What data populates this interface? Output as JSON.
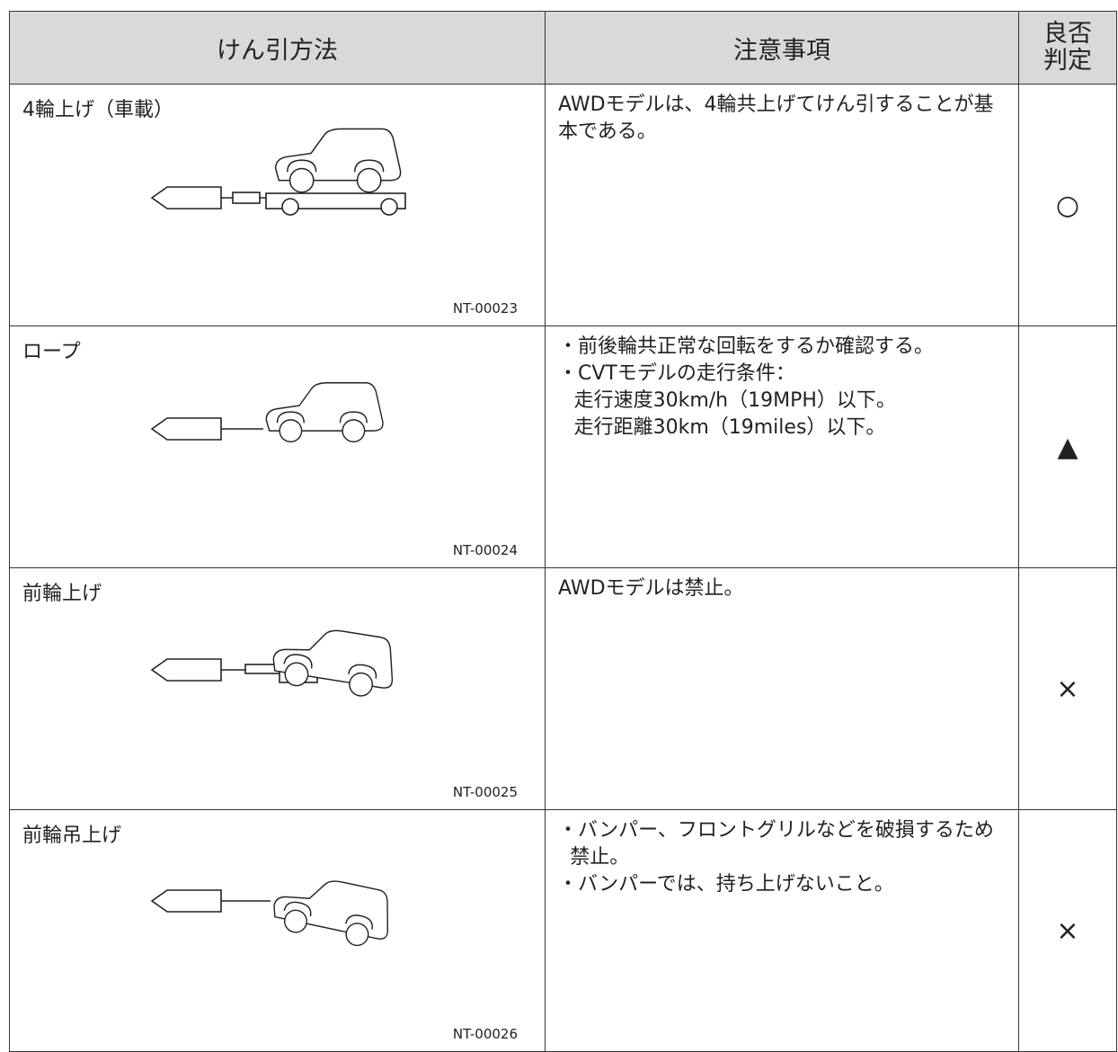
{
  "header": {
    "method": "けん引方法",
    "notes": "注意事項",
    "judgement": [
      "良否",
      "判定"
    ]
  },
  "rows": [
    {
      "method": "4輪上げ（車載）",
      "figure_id": "NT-00023",
      "notes": [
        {
          "text": "AWDモデルは、4輪共上げてけん引することが基本である。"
        }
      ],
      "judgement": "○"
    },
    {
      "method": "ロープ",
      "figure_id": "NT-00024",
      "notes": [
        {
          "text": "・前後輪共正常な回転をするか確認する。"
        },
        {
          "text": "・CVTモデルの走行条件：",
          "sub": [
            "走行速度30km/h（19MPH）以下。",
            "走行距離30km（19miles）以下。"
          ]
        }
      ],
      "judgement": "▲"
    },
    {
      "method": "前輪上げ",
      "figure_id": "NT-00025",
      "notes": [
        {
          "text": "AWDモデルは禁止。"
        }
      ],
      "judgement": "×"
    },
    {
      "method": "前輪吊上げ",
      "figure_id": "NT-00026",
      "notes": [
        {
          "text": "・バンパー、フロントグリルなどを破損するため禁止。"
        },
        {
          "text": "・バンパーでは、持ち上げないこと。"
        }
      ],
      "judgement": "×"
    }
  ]
}
